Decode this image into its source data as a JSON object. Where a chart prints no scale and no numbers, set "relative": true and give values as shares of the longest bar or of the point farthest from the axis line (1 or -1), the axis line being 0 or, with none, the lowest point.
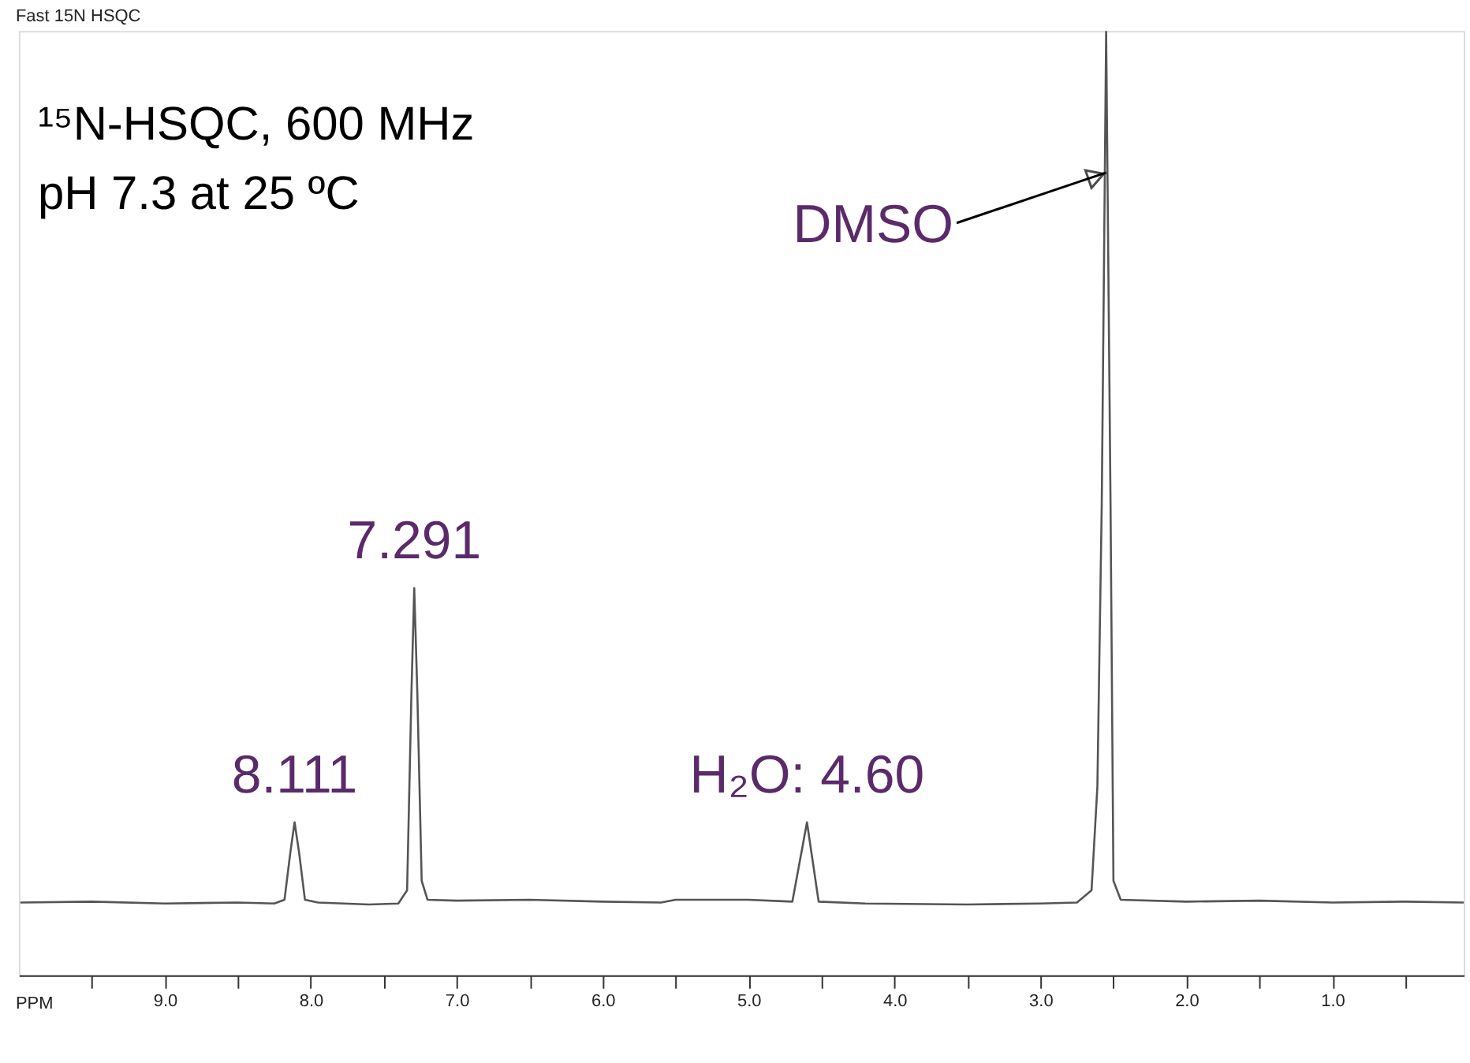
{
  "chart_data": {
    "type": "line",
    "title": "Fast 15N HSQC",
    "xlabel": "PPM",
    "relative": true,
    "grid": false,
    "tick_labels": "x",
    "marker": "none",
    "line_style": "solid",
    "xlim": [
      10.0,
      0.1
    ],
    "xticks": [
      {
        "value": 9.5,
        "label": null
      },
      {
        "value": 9,
        "label": "9.0"
      },
      {
        "value": 8.5,
        "label": null
      },
      {
        "value": 8,
        "label": "8.0"
      },
      {
        "value": 7.5,
        "label": null
      },
      {
        "value": 7,
        "label": "7.0"
      },
      {
        "value": 6.5,
        "label": null
      },
      {
        "value": 6,
        "label": "6.0"
      },
      {
        "value": 5.5,
        "label": null
      },
      {
        "value": 5,
        "label": "5.0"
      },
      {
        "value": 4.5,
        "label": null
      },
      {
        "value": 4,
        "label": "4.0"
      },
      {
        "value": 3.5,
        "label": null
      },
      {
        "value": 3,
        "label": "3.0"
      },
      {
        "value": 2.5,
        "label": null
      },
      {
        "value": 2,
        "label": "2.0"
      },
      {
        "value": 1.5,
        "label": null
      },
      {
        "value": 1,
        "label": "1.0"
      },
      {
        "value": 0.5,
        "label": null
      }
    ],
    "series": [
      {
        "color": "#555555",
        "x": [
          9.99,
          9.5,
          9.0,
          8.5,
          8.25,
          8.18,
          8.14,
          8.111,
          8.08,
          8.04,
          7.95,
          7.6,
          7.4,
          7.34,
          7.31,
          7.291,
          7.27,
          7.24,
          7.2,
          7.0,
          6.5,
          6.0,
          5.6,
          5.5,
          5.0,
          4.7,
          4.65,
          4.6,
          4.56,
          4.52,
          4.2,
          3.5,
          3.0,
          2.75,
          2.65,
          2.61,
          2.58,
          2.55,
          2.52,
          2.5,
          2.45,
          2.0,
          1.5,
          1.0,
          0.5,
          0.1
        ],
        "values": [
          0.077,
          0.078,
          0.076,
          0.077,
          0.076,
          0.08,
          0.13,
          0.162,
          0.13,
          0.08,
          0.077,
          0.075,
          0.076,
          0.09,
          0.3,
          0.41,
          0.3,
          0.1,
          0.08,
          0.079,
          0.08,
          0.078,
          0.077,
          0.08,
          0.08,
          0.078,
          0.12,
          0.162,
          0.12,
          0.078,
          0.076,
          0.075,
          0.076,
          0.077,
          0.09,
          0.2,
          0.5,
          1.0,
          0.5,
          0.1,
          0.08,
          0.078,
          0.079,
          0.077,
          0.078,
          0.077
        ]
      }
    ],
    "annotations": [
      "¹⁵N-HSQC, 600 MHz",
      "pH 7.3 at 25 ºC",
      {
        "text": "8.111",
        "x": 8.111,
        "y": 0.162
      },
      {
        "text": "7.291",
        "x": 7.291,
        "y": 0.41
      },
      {
        "text": "H₂O: 4.60",
        "x": 4.6,
        "y": 0.162
      },
      {
        "text": "DMSO",
        "x": 2.55,
        "y": 0.85
      }
    ]
  }
}
